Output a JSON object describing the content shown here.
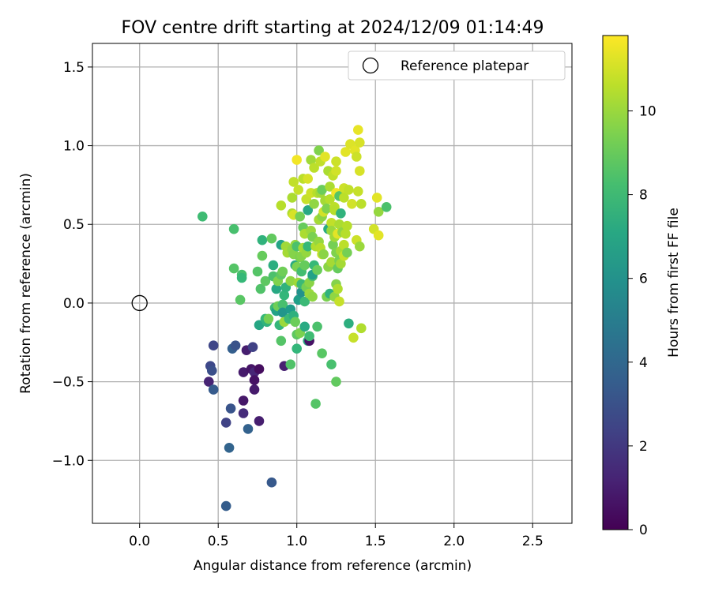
{
  "chart_data": {
    "type": "scatter",
    "title": "FOV centre drift starting at 2024/12/09 01:14:49",
    "xlabel": "Angular distance from reference (arcmin)",
    "ylabel": "Rotation from reference (arcmin)",
    "colorbar_label": "Hours from first FF file",
    "xlim": [
      -0.3,
      2.75
    ],
    "ylim": [
      -1.4,
      1.65
    ],
    "clim": [
      0,
      11.8
    ],
    "colormap": "viridis",
    "grid": true,
    "legend_position": "upper right",
    "x_ticks": [
      0.0,
      0.5,
      1.0,
      1.5,
      2.0,
      2.5
    ],
    "x_tick_labels": [
      "0.0",
      "0.5",
      "1.0",
      "1.5",
      "2.0",
      "2.5"
    ],
    "y_ticks": [
      -1.0,
      -0.5,
      0.0,
      0.5,
      1.0,
      1.5
    ],
    "y_tick_labels": [
      "−1.0",
      "−0.5",
      "0.0",
      "0.5",
      "1.0",
      "1.5"
    ],
    "colorbar_ticks": [
      0,
      2,
      4,
      6,
      8,
      10
    ],
    "colorbar_tick_labels": [
      "0",
      "2",
      "4",
      "6",
      "8",
      "10"
    ],
    "reference": {
      "label": "Reference platepar",
      "x": 0.0,
      "y": 0.0
    },
    "points": [
      [
        0.44,
        -0.5,
        1.2
      ],
      [
        0.45,
        -0.4,
        2.6
      ],
      [
        0.46,
        -0.43,
        2.9
      ],
      [
        0.47,
        -0.27,
        2.5
      ],
      [
        0.47,
        -0.55,
        3.4
      ],
      [
        0.55,
        -0.76,
        2.4
      ],
      [
        0.55,
        -1.29,
        3.5
      ],
      [
        0.57,
        -0.92,
        3.8
      ],
      [
        0.58,
        -0.67,
        3.1
      ],
      [
        0.59,
        -0.29,
        3.6
      ],
      [
        0.61,
        -0.27,
        3.0
      ],
      [
        0.66,
        -0.44,
        0.9
      ],
      [
        0.66,
        -0.62,
        0.8
      ],
      [
        0.66,
        -0.7,
        1.5
      ],
      [
        0.68,
        -0.3,
        1.0
      ],
      [
        0.69,
        -0.8,
        3.7
      ],
      [
        0.71,
        -0.42,
        0.7
      ],
      [
        0.72,
        -0.28,
        2.3
      ],
      [
        0.73,
        -0.44,
        1.3
      ],
      [
        0.73,
        -0.49,
        0.6
      ],
      [
        0.73,
        -0.55,
        0.9
      ],
      [
        0.76,
        -0.42,
        0.4
      ],
      [
        0.76,
        -0.75,
        1.0
      ],
      [
        0.84,
        -1.14,
        3.3
      ],
      [
        0.92,
        -0.4,
        1.1
      ],
      [
        0.4,
        0.55,
        8.1
      ],
      [
        0.6,
        0.47,
        8.3
      ],
      [
        0.6,
        0.22,
        8.6
      ],
      [
        0.65,
        0.18,
        8.3
      ],
      [
        0.65,
        0.16,
        7.9
      ],
      [
        0.64,
        0.02,
        8.7
      ],
      [
        0.75,
        0.2,
        8.6
      ],
      [
        0.76,
        -0.14,
        7.0
      ],
      [
        0.77,
        0.09,
        8.5
      ],
      [
        0.78,
        0.4,
        7.6
      ],
      [
        0.78,
        0.3,
        9.0
      ],
      [
        0.8,
        0.14,
        8.8
      ],
      [
        0.8,
        -0.1,
        7.9
      ],
      [
        0.81,
        -0.12,
        7.6
      ],
      [
        0.82,
        -0.1,
        9.3
      ],
      [
        0.84,
        0.41,
        8.9
      ],
      [
        0.85,
        0.17,
        8.4
      ],
      [
        0.85,
        0.24,
        7.4
      ],
      [
        0.86,
        -0.03,
        8.0
      ],
      [
        0.87,
        -0.05,
        6.8
      ],
      [
        0.87,
        0.09,
        7.1
      ],
      [
        0.88,
        0.14,
        9.5
      ],
      [
        0.88,
        -0.02,
        9.2
      ],
      [
        0.89,
        -0.14,
        7.8
      ],
      [
        0.9,
        0.18,
        8.8
      ],
      [
        0.9,
        -0.24,
        8.6
      ],
      [
        0.9,
        0.37,
        6.9
      ],
      [
        0.9,
        0.62,
        10.5
      ],
      [
        0.91,
        0.2,
        9.2
      ],
      [
        0.91,
        -0.01,
        8.3
      ],
      [
        0.91,
        -0.06,
        6.2
      ],
      [
        0.92,
        -0.12,
        10.0
      ],
      [
        0.92,
        0.05,
        7.8
      ],
      [
        0.93,
        0.36,
        10.1
      ],
      [
        0.93,
        0.1,
        7.6
      ],
      [
        0.94,
        0.32,
        10.2
      ],
      [
        0.95,
        -0.1,
        8.0
      ],
      [
        0.96,
        0.14,
        9.8
      ],
      [
        0.96,
        -0.04,
        6.5
      ],
      [
        0.96,
        -0.39,
        8.5
      ],
      [
        0.97,
        0.34,
        9.8
      ],
      [
        0.97,
        0.67,
        10.3
      ],
      [
        0.97,
        0.57,
        10.4
      ],
      [
        0.98,
        0.77,
        10.7
      ],
      [
        0.98,
        0.31,
        9.6
      ],
      [
        0.98,
        -0.08,
        7.5
      ],
      [
        0.98,
        0.56,
        11.1
      ],
      [
        0.99,
        0.37,
        9.9
      ],
      [
        0.99,
        0.24,
        7.2
      ],
      [
        0.99,
        -0.12,
        9.1
      ],
      [
        1.0,
        -0.2,
        8.8
      ],
      [
        1.0,
        0.23,
        9.4
      ],
      [
        1.0,
        0.36,
        8.4
      ],
      [
        1.0,
        -0.29,
        7.8
      ],
      [
        1.0,
        0.91,
        11.6
      ],
      [
        1.01,
        0.72,
        10.8
      ],
      [
        1.01,
        0.02,
        6.6
      ],
      [
        1.01,
        0.13,
        10.1
      ],
      [
        1.02,
        -0.19,
        9.4
      ],
      [
        1.02,
        0.29,
        9.4
      ],
      [
        1.02,
        0.55,
        9.3
      ],
      [
        1.03,
        0.2,
        8.2
      ],
      [
        1.03,
        0.3,
        9.6
      ],
      [
        1.03,
        0.07,
        6.0
      ],
      [
        1.03,
        0.12,
        8.0
      ],
      [
        1.04,
        0.35,
        10.2
      ],
      [
        1.04,
        0.48,
        9.0
      ],
      [
        1.04,
        0.79,
        10.6
      ],
      [
        1.05,
        0.44,
        10.3
      ],
      [
        1.05,
        -0.15,
        7.2
      ],
      [
        1.05,
        0.01,
        8.0
      ],
      [
        1.05,
        0.24,
        9.0
      ],
      [
        1.06,
        0.66,
        10.8
      ],
      [
        1.06,
        0.32,
        9.9
      ],
      [
        1.06,
        0.1,
        9.3
      ],
      [
        1.07,
        0.36,
        7.9
      ],
      [
        1.07,
        0.59,
        7.1
      ],
      [
        1.07,
        -0.24,
        7.3
      ],
      [
        1.07,
        0.79,
        11.1
      ],
      [
        1.08,
        0.13,
        9.7
      ],
      [
        1.08,
        -0.24,
        0.6
      ],
      [
        1.08,
        -0.21,
        8.1
      ],
      [
        1.08,
        0.06,
        10.0
      ],
      [
        1.09,
        0.91,
        10.1
      ],
      [
        1.09,
        0.46,
        10.0
      ],
      [
        1.09,
        0.7,
        10.9
      ],
      [
        1.1,
        0.42,
        9.4
      ],
      [
        1.1,
        0.17,
        8.5
      ],
      [
        1.1,
        0.18,
        6.8
      ],
      [
        1.1,
        0.04,
        9.8
      ],
      [
        1.11,
        0.86,
        10.6
      ],
      [
        1.11,
        0.24,
        7.9
      ],
      [
        1.11,
        0.63,
        9.8
      ],
      [
        1.12,
        0.36,
        10.4
      ],
      [
        1.12,
        -0.64,
        8.6
      ],
      [
        1.13,
        -0.15,
        8.4
      ],
      [
        1.13,
        0.7,
        10.5
      ],
      [
        1.13,
        0.21,
        9.1
      ],
      [
        1.14,
        0.39,
        9.9
      ],
      [
        1.14,
        0.53,
        10.2
      ],
      [
        1.14,
        0.97,
        9.5
      ],
      [
        1.15,
        0.35,
        10.5
      ],
      [
        1.15,
        0.7,
        10.1
      ],
      [
        1.15,
        0.9,
        10.7
      ],
      [
        1.16,
        0.55,
        9.7
      ],
      [
        1.16,
        0.72,
        9.1
      ],
      [
        1.16,
        0.31,
        10.8
      ],
      [
        1.16,
        -0.32,
        8.7
      ],
      [
        1.17,
        0.58,
        11.0
      ],
      [
        1.17,
        0.31,
        9.7
      ],
      [
        1.18,
        0.65,
        10.2
      ],
      [
        1.18,
        0.93,
        11.3
      ],
      [
        1.19,
        0.04,
        9.4
      ],
      [
        1.19,
        0.6,
        9.5
      ],
      [
        1.2,
        0.84,
        10.3
      ],
      [
        1.2,
        0.23,
        9.7
      ],
      [
        1.2,
        0.47,
        7.3
      ],
      [
        1.21,
        0.06,
        7.6
      ],
      [
        1.21,
        0.74,
        10.3
      ],
      [
        1.21,
        0.66,
        10.5
      ],
      [
        1.22,
        0.26,
        10.2
      ],
      [
        1.22,
        0.51,
        10.7
      ],
      [
        1.22,
        -0.39,
        8.3
      ],
      [
        1.22,
        0.46,
        10.0
      ],
      [
        1.23,
        0.37,
        9.3
      ],
      [
        1.23,
        0.81,
        10.7
      ],
      [
        1.24,
        0.04,
        9.8
      ],
      [
        1.24,
        0.42,
        10.1
      ],
      [
        1.24,
        0.61,
        10.6
      ],
      [
        1.24,
        0.59,
        10.5
      ],
      [
        1.25,
        0.9,
        10.9
      ],
      [
        1.25,
        0.32,
        9.5
      ],
      [
        1.25,
        0.7,
        11.6
      ],
      [
        1.25,
        0.12,
        9.6
      ],
      [
        1.25,
        0.84,
        11.0
      ],
      [
        1.25,
        -0.5,
        8.9
      ],
      [
        1.26,
        0.22,
        9.0
      ],
      [
        1.26,
        0.44,
        11.3
      ],
      [
        1.26,
        0.09,
        10.4
      ],
      [
        1.27,
        0.5,
        10.3
      ],
      [
        1.27,
        0.01,
        10.8
      ],
      [
        1.27,
        0.27,
        9.4
      ],
      [
        1.27,
        0.68,
        8.6
      ],
      [
        1.28,
        0.25,
        10.2
      ],
      [
        1.28,
        0.33,
        10.2
      ],
      [
        1.28,
        0.57,
        7.6
      ],
      [
        1.29,
        0.45,
        9.8
      ],
      [
        1.3,
        0.3,
        10.8
      ],
      [
        1.3,
        0.37,
        10.6
      ],
      [
        1.3,
        0.73,
        10.9
      ],
      [
        1.3,
        0.67,
        10.6
      ],
      [
        1.31,
        0.96,
        11.3
      ],
      [
        1.31,
        0.44,
        10.5
      ],
      [
        1.32,
        0.49,
        10.5
      ],
      [
        1.32,
        0.32,
        9.3
      ],
      [
        1.33,
        -0.13,
        7.4
      ],
      [
        1.33,
        0.72,
        10.7
      ],
      [
        1.34,
        1.01,
        11.2
      ],
      [
        1.35,
        0.63,
        11.0
      ],
      [
        1.36,
        -0.22,
        10.8
      ],
      [
        1.37,
        0.97,
        11.3
      ],
      [
        1.38,
        0.4,
        10.9
      ],
      [
        1.38,
        0.93,
        10.9
      ],
      [
        1.39,
        0.71,
        10.8
      ],
      [
        1.39,
        1.1,
        11.4
      ],
      [
        1.4,
        0.84,
        11.1
      ],
      [
        1.4,
        1.02,
        11.1
      ],
      [
        1.4,
        0.36,
        10.0
      ],
      [
        1.41,
        0.63,
        10.6
      ],
      [
        1.41,
        -0.16,
        10.4
      ],
      [
        1.49,
        0.47,
        11.0
      ],
      [
        1.51,
        0.67,
        11.3
      ],
      [
        1.52,
        0.58,
        9.9
      ],
      [
        1.52,
        0.43,
        11.3
      ],
      [
        1.57,
        0.61,
        8.4
      ]
    ]
  }
}
